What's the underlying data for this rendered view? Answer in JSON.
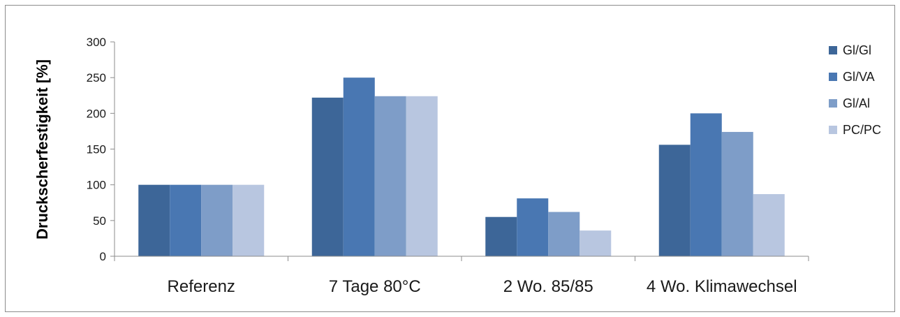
{
  "chart_data": {
    "type": "bar",
    "title": "",
    "xlabel": "",
    "ylabel": "Druckscherfestigkeit [%]",
    "ylim": [
      0,
      300
    ],
    "yticks": [
      0,
      50,
      100,
      150,
      200,
      250,
      300
    ],
    "grid": false,
    "legend_position": "right",
    "categories": [
      "Referenz",
      "7 Tage 80°C",
      "2 Wo. 85/85",
      "4 Wo. Klimawechsel"
    ],
    "series": [
      {
        "name": "Gl/Gl",
        "color": "#3d6698",
        "values": [
          100,
          222,
          55,
          156
        ]
      },
      {
        "name": "Gl/VA",
        "color": "#4977b2",
        "values": [
          100,
          250,
          81,
          200
        ]
      },
      {
        "name": "Gl/Al",
        "color": "#7e9dc8",
        "values": [
          100,
          224,
          62,
          174
        ]
      },
      {
        "name": "PC/PC",
        "color": "#b8c6e0",
        "values": [
          100,
          224,
          36,
          87
        ]
      }
    ]
  }
}
